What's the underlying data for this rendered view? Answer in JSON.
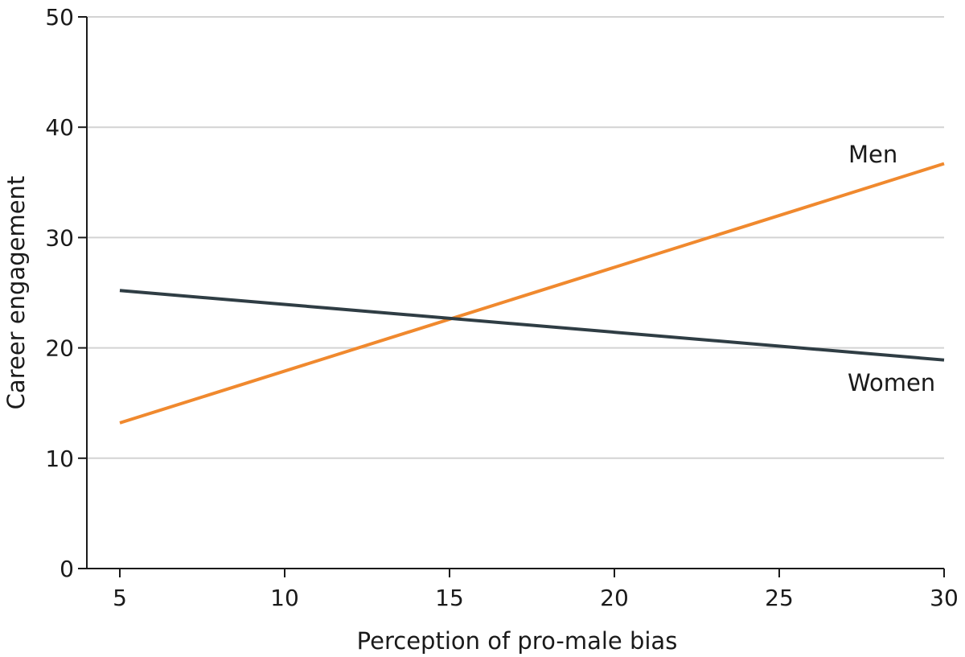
{
  "chart_data": {
    "type": "line",
    "title": "",
    "xlabel": "Perception of pro-male bias",
    "ylabel": "Career engagement",
    "xlim": [
      4,
      30
    ],
    "ylim": [
      0,
      50
    ],
    "xticks": [
      5,
      10,
      15,
      20,
      25,
      30
    ],
    "yticks": [
      0,
      10,
      20,
      30,
      40,
      50
    ],
    "grid": true,
    "legend": "none",
    "series": [
      {
        "name": "Men",
        "color": "#f0892e",
        "x": [
          5,
          30
        ],
        "y": [
          13.2,
          36.7
        ]
      },
      {
        "name": "Women",
        "color": "#2f3d44",
        "x": [
          5,
          30
        ],
        "y": [
          25.2,
          18.9
        ]
      }
    ]
  }
}
